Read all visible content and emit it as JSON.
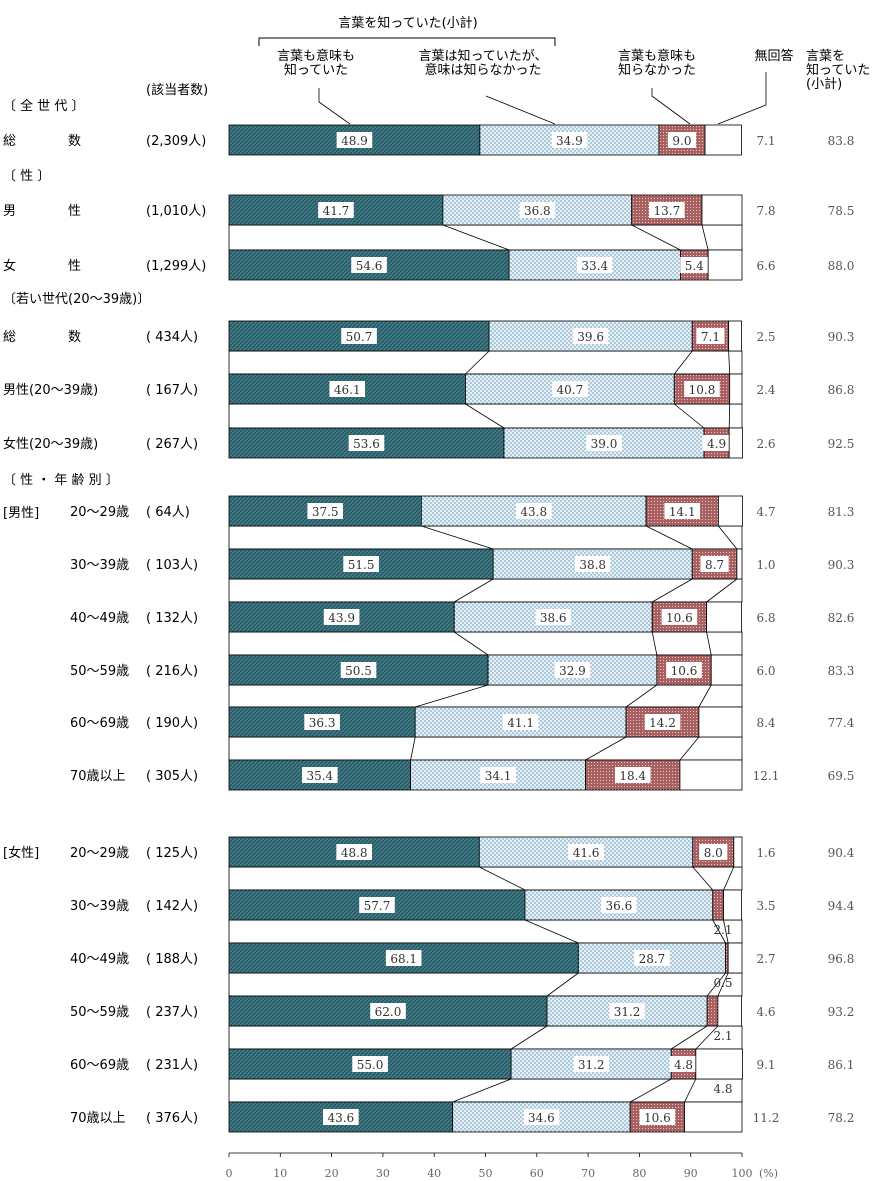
{
  "chart_data": {
    "type": "bar",
    "stacked": true,
    "orientation": "horizontal",
    "header": {
      "group_label": "言葉を知っていた(小計)",
      "col1": "言葉も意味も\n知っていた",
      "col2": "言葉は知っていたが、\n意味は知らなかった",
      "col3": "言葉も意味も\n知らなかった",
      "col4": "無回答",
      "col5": "言葉を\n知っていた\n(小計)",
      "n_label": "(該当者数)"
    },
    "series": [
      {
        "name": "言葉も意味も知っていた"
      },
      {
        "name": "言葉は知っていたが、意味は知らなかった"
      },
      {
        "name": "言葉も意味も知らなかった"
      },
      {
        "name": "無回答"
      }
    ],
    "sections": [
      {
        "label": "〔 全 世 代 〕"
      },
      {
        "label": "〔      性      〕"
      },
      {
        "label": "〔若い世代(20～39歳)〕"
      },
      {
        "label": "〔 性 ・ 年 齢 別 〕"
      }
    ],
    "group_labels": {
      "male": "[男性]",
      "female": "[女性]"
    },
    "rows": [
      {
        "label": "総　　　　数",
        "n": "(2,309人)",
        "values": [
          48.9,
          34.9,
          9.0,
          7.1
        ],
        "subtotal": "83.8"
      },
      {
        "label": "男　　　　性",
        "n": "(1,010人)",
        "values": [
          41.7,
          36.8,
          13.7,
          7.8
        ],
        "subtotal": "78.5"
      },
      {
        "label": "女　　　　性",
        "n": "(1,299人)",
        "values": [
          54.6,
          33.4,
          5.4,
          6.6
        ],
        "subtotal": "88.0"
      },
      {
        "label": "総　　　　数",
        "n": "(  434人)",
        "values": [
          50.7,
          39.6,
          7.1,
          2.5
        ],
        "subtotal": "90.3"
      },
      {
        "label": "男性(20～39歳)",
        "n": "(  167人)",
        "values": [
          46.1,
          40.7,
          10.8,
          2.4
        ],
        "subtotal": "86.8"
      },
      {
        "label": "女性(20～39歳)",
        "n": "(  267人)",
        "values": [
          53.6,
          39.0,
          4.9,
          2.6
        ],
        "subtotal": "92.5"
      },
      {
        "label": "20～29歳",
        "n": "(  64人)",
        "values": [
          37.5,
          43.8,
          14.1,
          4.7
        ],
        "subtotal": "81.3"
      },
      {
        "label": "30～39歳",
        "n": "( 103人)",
        "values": [
          51.5,
          38.8,
          8.7,
          1.0
        ],
        "subtotal": "90.3"
      },
      {
        "label": "40～49歳",
        "n": "( 132人)",
        "values": [
          43.9,
          38.6,
          10.6,
          6.8
        ],
        "subtotal": "82.6"
      },
      {
        "label": "50～59歳",
        "n": "( 216人)",
        "values": [
          50.5,
          32.9,
          10.6,
          6.0
        ],
        "subtotal": "83.3"
      },
      {
        "label": "60～69歳",
        "n": "( 190人)",
        "values": [
          36.3,
          41.1,
          14.2,
          8.4
        ],
        "subtotal": "77.4"
      },
      {
        "label": "70歳以上",
        "n": "( 305人)",
        "values": [
          35.4,
          34.1,
          18.4,
          12.1
        ],
        "subtotal": "69.5"
      },
      {
        "label": "20～29歳",
        "n": "( 125人)",
        "values": [
          48.8,
          41.6,
          8.0,
          1.6
        ],
        "subtotal": "90.4"
      },
      {
        "label": "30～39歳",
        "n": "( 142人)",
        "values": [
          57.7,
          36.6,
          2.1,
          3.5
        ],
        "subtotal": "94.4"
      },
      {
        "label": "40～49歳",
        "n": "( 188人)",
        "values": [
          68.1,
          28.7,
          0.5,
          2.7
        ],
        "subtotal": "96.8"
      },
      {
        "label": "50～59歳",
        "n": "( 237人)",
        "values": [
          62.0,
          31.2,
          2.1,
          4.6
        ],
        "subtotal": "93.2"
      },
      {
        "label": "60～69歳",
        "n": "( 231人)",
        "values": [
          55.0,
          31.2,
          4.8,
          9.1
        ],
        "subtotal": "86.1"
      },
      {
        "label": "70歳以上",
        "n": "( 376人)",
        "values": [
          43.6,
          34.6,
          10.6,
          11.2
        ],
        "subtotal": "78.2"
      }
    ],
    "xlim": [
      0,
      100
    ],
    "x_ticks": [
      0,
      10,
      20,
      30,
      40,
      50,
      60,
      70,
      80,
      90,
      100
    ],
    "x_unit": "(%)",
    "colors": {
      "s1": "#3e7a86",
      "s2": "#dce9f2",
      "s3": "#a86060",
      "s4": "#ffffff"
    }
  }
}
